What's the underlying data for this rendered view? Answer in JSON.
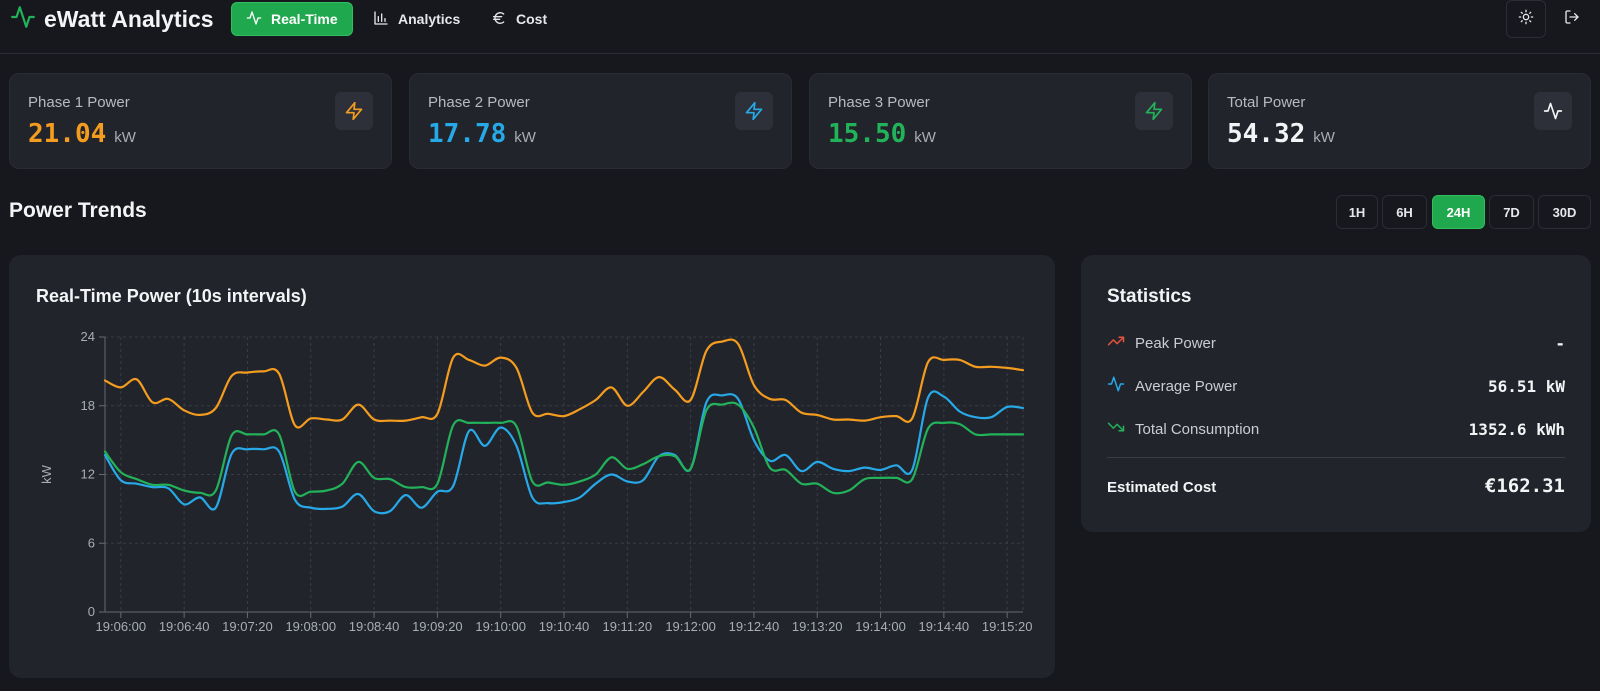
{
  "app": {
    "title": "eWatt Analytics"
  },
  "nav": {
    "items": [
      {
        "label": "Real-Time",
        "icon": "activity-icon",
        "active": true
      },
      {
        "label": "Analytics",
        "icon": "bar-chart-icon",
        "active": false
      },
      {
        "label": "Cost",
        "icon": "euro-icon",
        "active": false
      }
    ],
    "actions": [
      {
        "icon": "sun-icon"
      },
      {
        "icon": "logout-icon"
      }
    ]
  },
  "cards": [
    {
      "label": "Phase 1 Power",
      "value": "21.04",
      "unit": "kW",
      "color": "#f39c1f",
      "icon": "zap-icon"
    },
    {
      "label": "Phase 2 Power",
      "value": "17.78",
      "unit": "kW",
      "color": "#27a9e8",
      "icon": "zap-icon"
    },
    {
      "label": "Phase 3 Power",
      "value": "15.50",
      "unit": "kW",
      "color": "#22b35a",
      "icon": "zap-icon"
    },
    {
      "label": "Total Power",
      "value": "54.32",
      "unit": "kW",
      "color": "#f3f4f6",
      "icon": "activity-icon"
    }
  ],
  "trends": {
    "title": "Power Trends",
    "ranges": [
      "1H",
      "6H",
      "24H",
      "7D",
      "30D"
    ],
    "active_range": "24H"
  },
  "chart_data": {
    "type": "line",
    "title": "Real-Time Power (10s intervals)",
    "xlabel": "",
    "ylabel": "kW",
    "ylim": [
      0,
      24
    ],
    "yticks": [
      0,
      6,
      12,
      18,
      24
    ],
    "grid": true,
    "xtick_labels": [
      "19:06:00",
      "19:06:40",
      "19:07:20",
      "19:08:00",
      "19:08:40",
      "19:09:20",
      "19:10:00",
      "19:10:40",
      "19:11:20",
      "19:12:00",
      "19:12:40",
      "19:13:20",
      "19:14:00",
      "19:14:40",
      "19:15:20"
    ],
    "x_start": "19:05:50",
    "x_end": "19:15:30",
    "x": [
      "19:05:50",
      "19:06:00",
      "19:06:10",
      "19:06:20",
      "19:06:30",
      "19:06:40",
      "19:06:50",
      "19:07:00",
      "19:07:10",
      "19:07:20",
      "19:07:30",
      "19:07:40",
      "19:07:50",
      "19:08:00",
      "19:08:10",
      "19:08:20",
      "19:08:30",
      "19:08:40",
      "19:08:50",
      "19:09:00",
      "19:09:10",
      "19:09:20",
      "19:09:30",
      "19:09:40",
      "19:09:50",
      "19:10:00",
      "19:10:10",
      "19:10:20",
      "19:10:30",
      "19:10:40",
      "19:10:50",
      "19:11:00",
      "19:11:10",
      "19:11:20",
      "19:11:30",
      "19:11:40",
      "19:11:50",
      "19:12:00",
      "19:12:10",
      "19:12:20",
      "19:12:30",
      "19:12:40",
      "19:12:50",
      "19:13:00",
      "19:13:10",
      "19:13:20",
      "19:13:30",
      "19:13:40",
      "19:13:50",
      "19:14:00",
      "19:14:10",
      "19:14:20",
      "19:14:30",
      "19:14:40",
      "19:14:50",
      "19:15:00",
      "19:15:10",
      "19:15:20",
      "19:15:30"
    ],
    "series": [
      {
        "color": "#f39c1f",
        "values": [
          20.2,
          19.6,
          20.3,
          18.3,
          18.6,
          17.6,
          17.2,
          17.8,
          20.6,
          20.9,
          21.0,
          20.8,
          16.3,
          16.9,
          16.8,
          16.8,
          18.1,
          16.8,
          16.7,
          16.7,
          17.0,
          17.3,
          22.2,
          22.0,
          21.5,
          22.2,
          21.3,
          17.4,
          17.3,
          17.1,
          17.7,
          18.5,
          19.6,
          18.0,
          19.2,
          20.5,
          19.4,
          18.5,
          22.8,
          23.6,
          23.4,
          19.8,
          18.6,
          18.5,
          17.4,
          17.2,
          16.8,
          16.8,
          16.7,
          17.0,
          17.1,
          16.9,
          21.8,
          22.0,
          22.0,
          21.4,
          21.4,
          21.3,
          21.1
        ]
      },
      {
        "color": "#27a9e8",
        "values": [
          13.7,
          11.5,
          11.2,
          10.9,
          10.8,
          9.4,
          10.0,
          9.1,
          13.8,
          14.2,
          14.2,
          14.0,
          9.8,
          9.1,
          9.0,
          9.2,
          10.3,
          8.8,
          8.8,
          10.2,
          9.1,
          10.5,
          11.0,
          15.8,
          14.5,
          16.1,
          14.5,
          10.0,
          9.5,
          9.6,
          10.0,
          11.2,
          12.0,
          11.4,
          11.5,
          13.6,
          13.7,
          12.5,
          18.3,
          18.9,
          18.6,
          15.0,
          13.2,
          13.7,
          12.3,
          13.1,
          12.5,
          12.3,
          12.6,
          12.4,
          12.8,
          12.4,
          18.7,
          18.8,
          17.5,
          17.0,
          17.0,
          17.9,
          17.8
        ]
      },
      {
        "color": "#22b35a",
        "values": [
          14.0,
          12.2,
          11.6,
          11.1,
          11.1,
          10.6,
          10.4,
          10.6,
          15.4,
          15.5,
          15.5,
          15.5,
          10.5,
          10.5,
          10.6,
          11.2,
          13.1,
          11.7,
          11.6,
          10.9,
          10.9,
          11.2,
          16.3,
          16.5,
          16.5,
          16.5,
          16.2,
          11.4,
          11.3,
          11.1,
          11.4,
          12.0,
          13.5,
          12.5,
          12.9,
          13.6,
          13.6,
          12.5,
          17.6,
          18.1,
          18.1,
          16.1,
          12.6,
          12.4,
          11.2,
          11.2,
          10.4,
          10.6,
          11.6,
          11.7,
          11.7,
          11.6,
          16.0,
          16.5,
          16.4,
          15.5,
          15.5,
          15.5,
          15.5
        ]
      }
    ]
  },
  "stats": {
    "title": "Statistics",
    "rows": [
      {
        "label": "Peak Power",
        "value": "-",
        "icon": "trending-up-icon",
        "color": "#e5533d"
      },
      {
        "label": "Average Power",
        "value": "56.51 kW",
        "icon": "activity-icon",
        "color": "#27a9e8"
      },
      {
        "label": "Total Consumption",
        "value": "1352.6 kWh",
        "icon": "trending-down-icon",
        "color": "#22b35a"
      }
    ],
    "cost_label": "Estimated Cost",
    "cost_value": "€162.31"
  }
}
